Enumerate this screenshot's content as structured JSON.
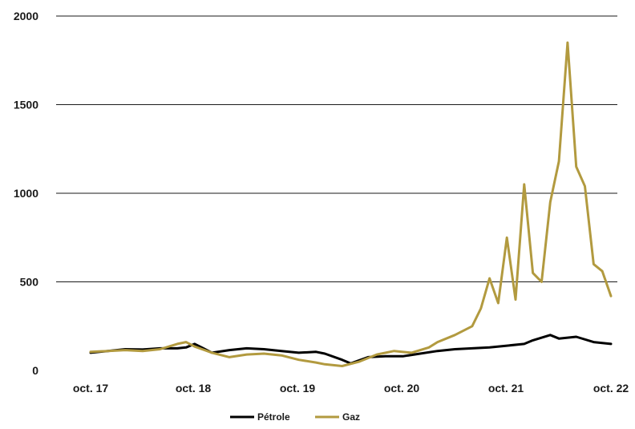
{
  "chart_data": {
    "type": "line",
    "title": "",
    "xlabel": "",
    "ylabel": "",
    "ylim": [
      0,
      2000
    ],
    "y_ticks": [
      "0",
      "500",
      "1000",
      "1500",
      "2000"
    ],
    "x_ticks": [
      "oct. 17",
      "oct. 18",
      "oct. 19",
      "oct. 20",
      "oct. 21",
      "oct. 22"
    ],
    "x_range": [
      "2017-10",
      "2022-10"
    ],
    "grid": "horizontal",
    "legend_position": "bottom",
    "series": [
      {
        "name": "Pétrole",
        "color": "#000000",
        "x": [
          "2017-10",
          "2017-12",
          "2018-02",
          "2018-04",
          "2018-06",
          "2018-08",
          "2018-09",
          "2018-10",
          "2018-12",
          "2019-02",
          "2019-04",
          "2019-06",
          "2019-08",
          "2019-10",
          "2019-12",
          "2020-01",
          "2020-03",
          "2020-04",
          "2020-06",
          "2020-08",
          "2020-10",
          "2020-12",
          "2021-02",
          "2021-04",
          "2021-06",
          "2021-08",
          "2021-10",
          "2021-12",
          "2022-01",
          "2022-03",
          "2022-04",
          "2022-06",
          "2022-08",
          "2022-10"
        ],
        "values": [
          100,
          110,
          120,
          118,
          125,
          125,
          130,
          150,
          100,
          115,
          125,
          120,
          110,
          100,
          105,
          95,
          60,
          40,
          75,
          80,
          80,
          95,
          110,
          120,
          125,
          130,
          140,
          150,
          170,
          200,
          180,
          190,
          160,
          150
        ]
      },
      {
        "name": "Gaz",
        "color": "#b29a3f",
        "x": [
          "2017-10",
          "2017-12",
          "2018-02",
          "2018-04",
          "2018-06",
          "2018-08",
          "2018-09",
          "2018-10",
          "2018-12",
          "2019-02",
          "2019-04",
          "2019-06",
          "2019-08",
          "2019-10",
          "2019-12",
          "2020-01",
          "2020-03",
          "2020-05",
          "2020-07",
          "2020-09",
          "2020-11",
          "2021-01",
          "2021-02",
          "2021-04",
          "2021-06",
          "2021-07",
          "2021-08",
          "2021-09",
          "2021-10",
          "2021-11",
          "2021-12",
          "2022-01",
          "2022-02",
          "2022-03",
          "2022-04",
          "2022-05",
          "2022-06",
          "2022-07",
          "2022-08",
          "2022-09",
          "2022-10"
        ],
        "values": [
          105,
          110,
          115,
          110,
          120,
          150,
          160,
          135,
          100,
          75,
          90,
          95,
          85,
          60,
          45,
          35,
          25,
          50,
          90,
          110,
          100,
          130,
          160,
          200,
          250,
          350,
          520,
          380,
          750,
          400,
          1050,
          550,
          500,
          950,
          1180,
          1850,
          1150,
          1040,
          600,
          560,
          420
        ]
      }
    ]
  }
}
